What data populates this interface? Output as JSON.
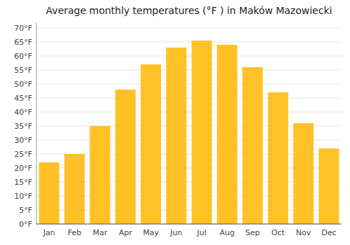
{
  "chart_data": {
    "type": "bar",
    "title": "Average monthly temperatures (°F ) in Maków Mazowiecki",
    "categories": [
      "Jan",
      "Feb",
      "Mar",
      "Apr",
      "May",
      "Jun",
      "Jul",
      "Aug",
      "Sep",
      "Oct",
      "Nov",
      "Dec"
    ],
    "values": [
      22,
      25,
      35,
      48,
      57,
      63,
      65.5,
      64,
      56,
      47,
      36,
      27
    ],
    "color": "#FFC125",
    "ylim": [
      0,
      72
    ],
    "yticks": [
      {
        "value": 0,
        "label": "0°F"
      },
      {
        "value": 5,
        "label": "5°F"
      },
      {
        "value": 10,
        "label": "10°F"
      },
      {
        "value": 15,
        "label": "15°F"
      },
      {
        "value": 20,
        "label": "20°F"
      },
      {
        "value": 25,
        "label": "25°F"
      },
      {
        "value": 30,
        "label": "30°F"
      },
      {
        "value": 35,
        "label": "35°F"
      },
      {
        "value": 40,
        "label": "40°F"
      },
      {
        "value": 45,
        "label": "45°F"
      },
      {
        "value": 50,
        "label": "50°F"
      },
      {
        "value": 55,
        "label": "55°F"
      },
      {
        "value": 60,
        "label": "60°F"
      },
      {
        "value": 65,
        "label": "65°F"
      },
      {
        "value": 70,
        "label": "70°F"
      }
    ],
    "grid": true
  }
}
